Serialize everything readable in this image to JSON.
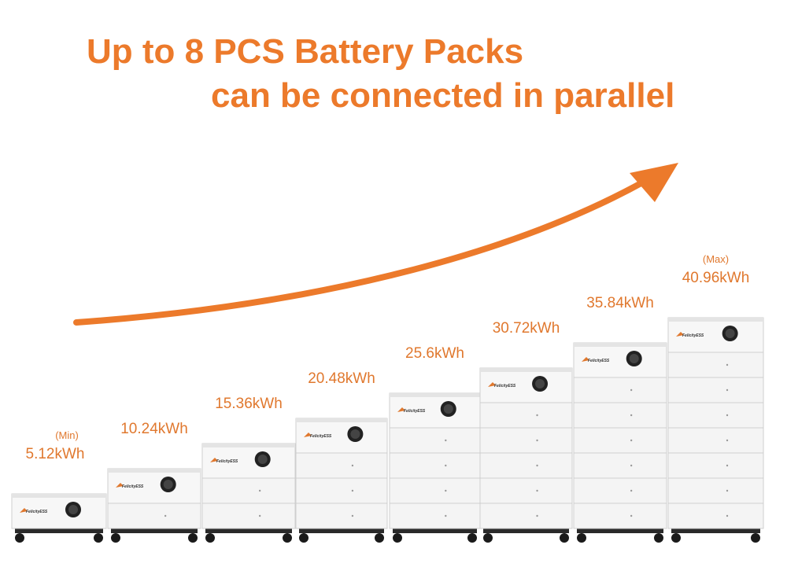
{
  "header": {
    "title_line1": "Up to 8 PCS Battery Packs",
    "title_line2": "can be connected in parallel"
  },
  "brand": "FelicityESS",
  "configurations": [
    {
      "note": "(Min)",
      "capacity": "5.12kWh"
    },
    {
      "capacity": "10.24kWh"
    },
    {
      "capacity": "15.36kWh"
    },
    {
      "capacity": "20.48kWh"
    },
    {
      "capacity": "25.6kWh"
    },
    {
      "capacity": "30.72kWh"
    },
    {
      "capacity": "35.84kWh"
    },
    {
      "note": "(Max)",
      "capacity": "40.96kWh"
    }
  ]
}
